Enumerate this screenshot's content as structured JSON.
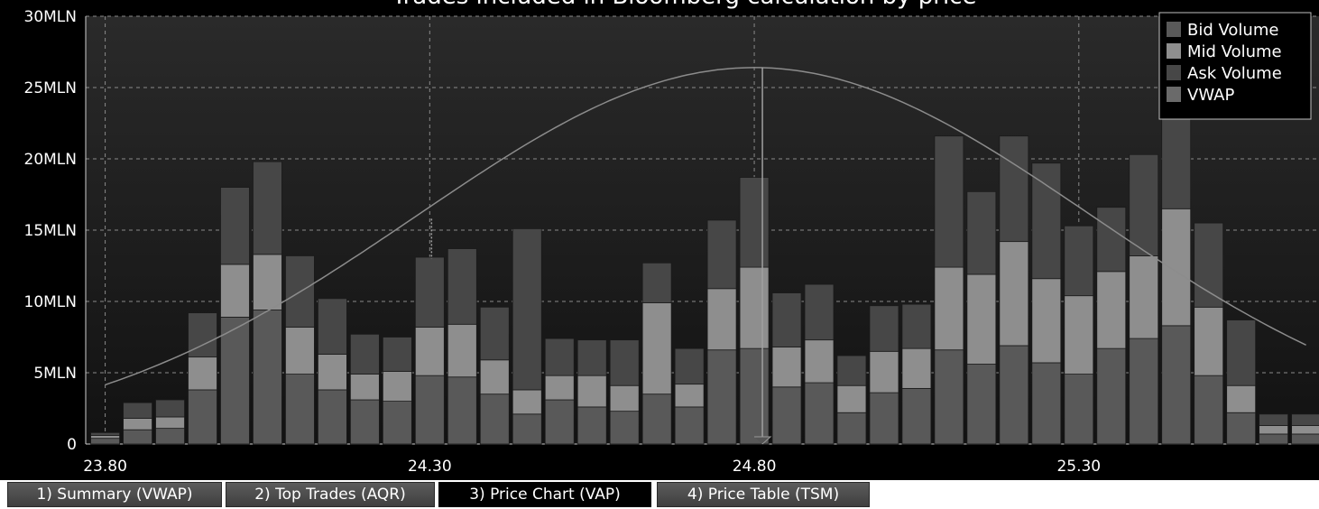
{
  "chart_data": {
    "type": "bar",
    "title": "Trades included in Bloomberg calculation by price",
    "xlabel": "",
    "ylabel": "",
    "ylim": [
      0,
      30
    ],
    "y_ticks": [
      "0",
      "5MLN",
      "10MLN",
      "15MLN",
      "20MLN",
      "25MLN",
      "30MLN"
    ],
    "x_ticks": [
      "23.80",
      "24.30",
      "24.80",
      "25.30"
    ],
    "x_range": [
      23.77,
      25.67
    ],
    "stacked": true,
    "grid": true,
    "legend_position": "top-right",
    "vwap_price": 24.8,
    "prices": [
      23.8,
      23.85,
      23.9,
      23.95,
      24.0,
      24.05,
      24.1,
      24.15,
      24.2,
      24.25,
      24.3,
      24.35,
      24.4,
      24.45,
      24.5,
      24.55,
      24.6,
      24.65,
      24.7,
      24.75,
      24.8,
      24.85,
      24.9,
      24.95,
      25.0,
      25.05,
      25.1,
      25.15,
      25.2,
      25.25,
      25.3,
      25.35,
      25.4,
      25.45,
      25.5,
      25.55,
      25.6,
      25.65
    ],
    "series": [
      {
        "name": "Bid Volume",
        "color": "#595959",
        "values": [
          0.4,
          1.0,
          1.1,
          3.8,
          8.9,
          9.4,
          4.9,
          3.8,
          3.1,
          3.0,
          4.8,
          4.7,
          3.5,
          2.1,
          3.1,
          2.6,
          2.3,
          3.5,
          2.6,
          6.6,
          6.7,
          4.0,
          4.3,
          2.2,
          3.6,
          3.9,
          6.6,
          5.6,
          6.9,
          5.7,
          4.9,
          6.7,
          7.4,
          8.3,
          4.8,
          2.2,
          0.7,
          0.7
        ]
      },
      {
        "name": "Mid Volume",
        "color": "#8e8e8e",
        "values": [
          0.2,
          0.8,
          0.8,
          2.3,
          3.7,
          3.9,
          3.3,
          2.5,
          1.8,
          2.1,
          3.4,
          3.7,
          2.4,
          1.7,
          1.7,
          2.2,
          1.8,
          6.4,
          1.6,
          4.3,
          5.7,
          2.8,
          3.0,
          1.9,
          2.9,
          2.8,
          5.8,
          6.3,
          7.3,
          5.9,
          5.5,
          5.4,
          5.8,
          8.2,
          4.8,
          1.9,
          0.6,
          0.6
        ]
      },
      {
        "name": "Ask Volume",
        "color": "#474747",
        "values": [
          0.2,
          1.1,
          1.2,
          3.1,
          5.4,
          6.5,
          5.0,
          3.9,
          2.8,
          2.4,
          4.9,
          5.3,
          3.7,
          11.3,
          2.6,
          2.5,
          3.2,
          2.8,
          2.5,
          4.8,
          6.3,
          3.8,
          3.9,
          2.1,
          3.2,
          3.1,
          9.2,
          5.8,
          7.4,
          8.1,
          4.9,
          4.5,
          7.1,
          9.9,
          5.9,
          4.6,
          0.8,
          0.8
        ]
      },
      {
        "name": "VWAP",
        "color": "#6a6a6a",
        "values": []
      }
    ],
    "curve_peak": 26.4,
    "curve_sigma": 0.52
  },
  "tabs": [
    {
      "label": "1) Summary (VWAP)"
    },
    {
      "label": "2) Top Trades (AQR)"
    },
    {
      "label": "3) Price Chart (VAP)"
    },
    {
      "label": "4) Price Table (TSM)"
    }
  ],
  "active_tab": 2
}
